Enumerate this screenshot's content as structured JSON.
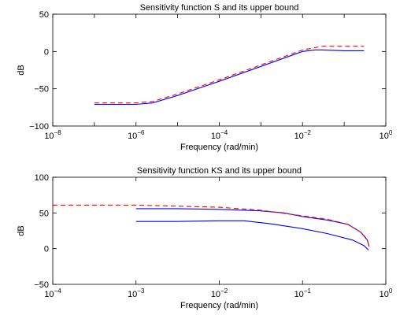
{
  "colors": {
    "solid": "#0000ff",
    "dashed": "#ff0000",
    "axes": "#000000",
    "background": "#ffffff"
  },
  "chart_data": [
    {
      "type": "line",
      "title": "Sensitivity function S and its upper bound",
      "xlabel": "Frequency (rad/min)",
      "ylabel": "dB",
      "xscale": "log",
      "xlim": [
        1e-08,
        1
      ],
      "ylim": [
        -100,
        50
      ],
      "xticks": [
        {
          "base": "10",
          "exp": "−8"
        },
        {
          "base": "10",
          "exp": "−6"
        },
        {
          "base": "10",
          "exp": "−4"
        },
        {
          "base": "10",
          "exp": "−2"
        },
        {
          "base": "10",
          "exp": "0"
        }
      ],
      "yticks": [
        "50",
        "0",
        "−50",
        "−100"
      ],
      "grid": false,
      "series": [
        {
          "style": "solid",
          "color": "#0000ff",
          "x": [
            1e-07,
            1e-06,
            2.5e-06,
            1e-05,
            0.0001,
            0.001,
            0.01,
            0.02,
            0.03,
            0.1,
            0.3
          ],
          "y": [
            -71,
            -71,
            -69,
            -59,
            -40,
            -20,
            0,
            2,
            2,
            1,
            1
          ]
        },
        {
          "style": "dashed",
          "color": "#ff0000",
          "x": [
            1e-07,
            1e-06,
            2.5e-06,
            1e-05,
            0.0001,
            0.001,
            0.01,
            0.03,
            0.1,
            0.3
          ],
          "y": [
            -69,
            -69,
            -67,
            -57,
            -38,
            -18,
            2,
            7,
            7,
            7
          ]
        }
      ]
    },
    {
      "type": "line",
      "title": "Sensitivity function KS and its upper bound",
      "xlabel": "Frequency (rad/min)",
      "ylabel": "dB",
      "xscale": "log",
      "xlim": [
        0.0001,
        1
      ],
      "ylim": [
        -50,
        100
      ],
      "xticks": [
        {
          "base": "10",
          "exp": "−4"
        },
        {
          "base": "10",
          "exp": "−3"
        },
        {
          "base": "10",
          "exp": "−2"
        },
        {
          "base": "10",
          "exp": "−1"
        },
        {
          "base": "10",
          "exp": "0"
        }
      ],
      "yticks": [
        "100",
        "50",
        "0",
        "−50"
      ],
      "grid": false,
      "series": [
        {
          "style": "solid",
          "color": "#0000ff",
          "x": [
            0.001,
            0.003,
            0.01,
            0.03,
            0.06,
            0.1,
            0.2,
            0.35,
            0.5,
            0.6,
            0.63
          ],
          "y": [
            56,
            56,
            55,
            53,
            50,
            45,
            40,
            34,
            23,
            12,
            3
          ]
        },
        {
          "style": "solid",
          "color": "#0000ff",
          "x": [
            0.001,
            0.003,
            0.01,
            0.02,
            0.04,
            0.1,
            0.2,
            0.4,
            0.55,
            0.62
          ],
          "y": [
            38,
            38,
            39,
            39,
            35,
            28,
            21,
            12,
            4,
            -2
          ]
        },
        {
          "style": "dashed",
          "color": "#ff0000",
          "x": [
            0.0001,
            0.001,
            0.01,
            0.03,
            0.1,
            0.2,
            0.35,
            0.5,
            0.6,
            0.63
          ],
          "y": [
            61,
            61,
            58,
            54,
            46,
            41,
            34,
            23,
            13,
            3
          ]
        }
      ]
    }
  ]
}
